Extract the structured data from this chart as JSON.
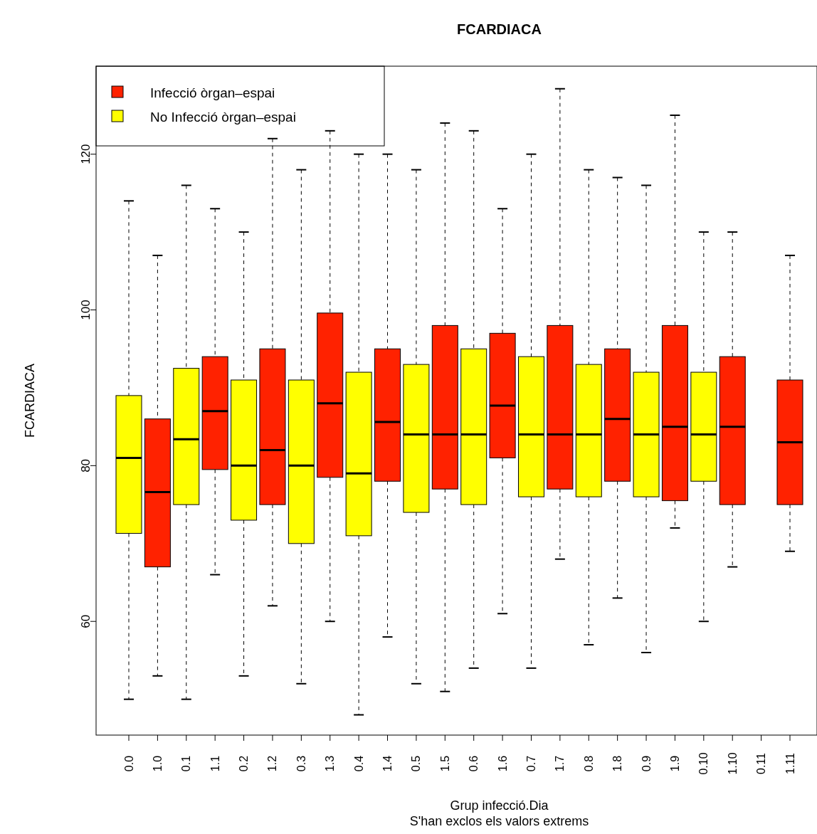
{
  "chart_data": {
    "type": "box",
    "title": "FCARDIACA",
    "xlabel": "Grup infecció.Dia",
    "ylabel": "FCARDIACA",
    "annotations": [
      "S'han exclos els valors extrems"
    ],
    "categories": [
      "0.0",
      "1.0",
      "0.1",
      "1.1",
      "0.2",
      "1.2",
      "0.3",
      "1.3",
      "0.4",
      "1.4",
      "0.5",
      "1.5",
      "0.6",
      "1.6",
      "0.7",
      "1.7",
      "0.8",
      "1.8",
      "0.9",
      "1.9",
      "0.10",
      "1.10",
      "0.11",
      "1.11"
    ],
    "ylim": [
      45.4,
      131.3
    ],
    "yticks": [
      60,
      80,
      100,
      120
    ],
    "legend": "top left",
    "grid": false,
    "series": [
      {
        "name": "Infecció òrgan–espai",
        "color": "#ff2200",
        "boxes": [
          null,
          {
            "low": 53,
            "q1": 67,
            "median": 76.6,
            "q3": 86,
            "high": 107
          },
          null,
          {
            "low": 66,
            "q1": 79.5,
            "median": 87,
            "q3": 94,
            "high": 113
          },
          null,
          {
            "low": 62,
            "q1": 75,
            "median": 82,
            "q3": 95,
            "high": 122
          },
          null,
          {
            "low": 60,
            "q1": 78.5,
            "median": 88,
            "q3": 99.6,
            "high": 123
          },
          null,
          {
            "low": 58,
            "q1": 78,
            "median": 85.6,
            "q3": 95,
            "high": 120
          },
          null,
          {
            "low": 51,
            "q1": 77,
            "median": 84,
            "q3": 98,
            "high": 124
          },
          null,
          {
            "low": 61,
            "q1": 81,
            "median": 87.7,
            "q3": 97,
            "high": 113
          },
          null,
          {
            "low": 68,
            "q1": 77,
            "median": 84,
            "q3": 98,
            "high": 128.4
          },
          null,
          {
            "low": 63,
            "q1": 78,
            "median": 86,
            "q3": 95,
            "high": 117
          },
          null,
          {
            "low": 72,
            "q1": 75.5,
            "median": 85,
            "q3": 98,
            "high": 125
          },
          null,
          {
            "low": 67,
            "q1": 75,
            "median": 85,
            "q3": 94,
            "high": 110
          },
          null,
          {
            "low": 69,
            "q1": 75,
            "median": 83,
            "q3": 91,
            "high": 107
          }
        ]
      },
      {
        "name": "No Infecció òrgan–espai",
        "color": "#ffff00",
        "boxes": [
          {
            "low": 50,
            "q1": 71.3,
            "median": 81,
            "q3": 89,
            "high": 114
          },
          null,
          {
            "low": 50,
            "q1": 75,
            "median": 83.4,
            "q3": 92.5,
            "high": 116
          },
          null,
          {
            "low": 53,
            "q1": 73,
            "median": 80,
            "q3": 91,
            "high": 110
          },
          null,
          {
            "low": 52,
            "q1": 70,
            "median": 80,
            "q3": 91,
            "high": 118
          },
          null,
          {
            "low": 48,
            "q1": 71,
            "median": 79,
            "q3": 92,
            "high": 120
          },
          null,
          {
            "low": 52,
            "q1": 74,
            "median": 84,
            "q3": 93,
            "high": 118
          },
          null,
          {
            "low": 54,
            "q1": 75,
            "median": 84,
            "q3": 95,
            "high": 123
          },
          null,
          {
            "low": 54,
            "q1": 76,
            "median": 84,
            "q3": 94,
            "high": 120
          },
          null,
          {
            "low": 57,
            "q1": 76,
            "median": 84,
            "q3": 93,
            "high": 118
          },
          null,
          {
            "low": 56,
            "q1": 76,
            "median": 84,
            "q3": 92,
            "high": 116
          },
          null,
          {
            "low": 60,
            "q1": 78,
            "median": 84,
            "q3": 92,
            "high": 110
          },
          null,
          null,
          null
        ]
      }
    ]
  }
}
